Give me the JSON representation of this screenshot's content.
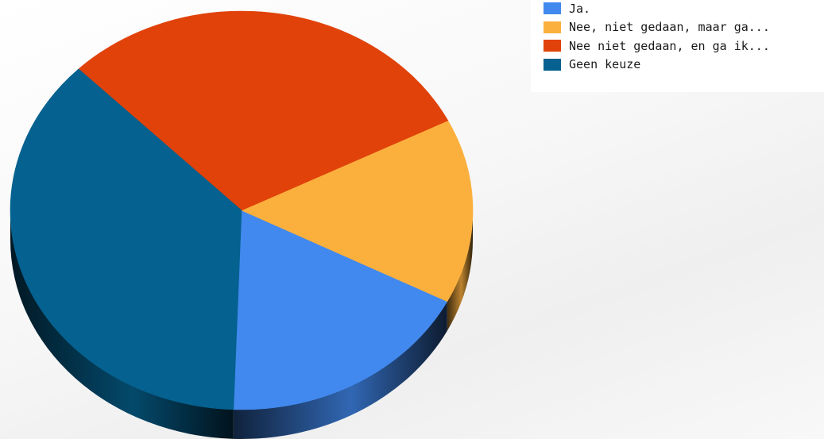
{
  "chart_data": {
    "type": "pie",
    "title": "",
    "categories": [
      "Ja.",
      "Nee, niet gedaan, maar ga...",
      "Nee niet gedaan, en ga ik...",
      "Geen keuze"
    ],
    "values": [
      18,
      15,
      30,
      37
    ],
    "unit": "%",
    "colors": [
      "#4189ee",
      "#fbb03e",
      "#e0420a",
      "#05618f"
    ],
    "legend": {
      "position": "top-right",
      "entries": [
        "Ja.",
        "Nee, niet gedaan, maar ga...",
        "Nee niet gedaan, en ga ik...",
        "Geen keuze"
      ]
    },
    "style": "3d-tilted"
  }
}
